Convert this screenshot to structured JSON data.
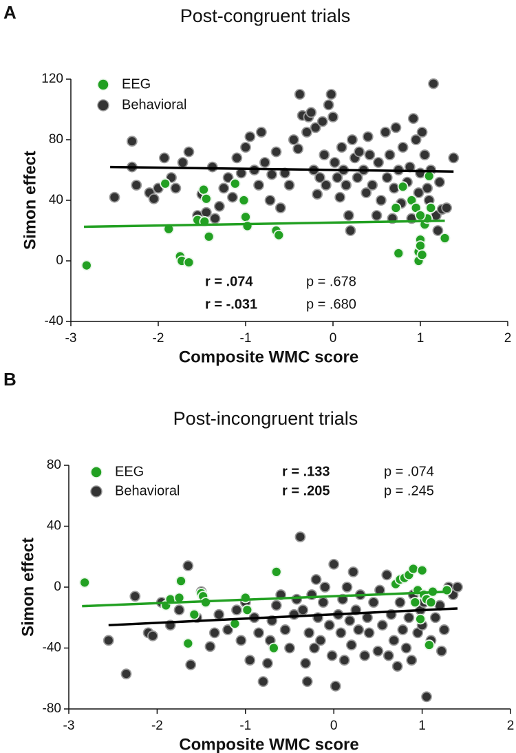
{
  "chart_data": [
    {
      "type": "scatter",
      "panel_label": "A",
      "title": "Post-congruent trials",
      "xlabel": "Composite WMC score",
      "ylabel": "Simon effect",
      "xlim": [
        -3,
        2
      ],
      "xticks": [
        -3,
        -2,
        -1,
        0,
        1,
        2
      ],
      "ylim": [
        -40,
        120
      ],
      "yticks": [
        -40,
        0,
        40,
        80,
        120
      ],
      "legend": "upper left",
      "series": [
        {
          "name": "Behavioral",
          "color": "#333333",
          "x": [
            -2.5,
            -2.3,
            -2.3,
            -2.25,
            -2.1,
            -2.05,
            -2.0,
            -1.93,
            -1.85,
            -1.8,
            -1.72,
            -1.65,
            -1.55,
            -1.5,
            -1.45,
            -1.38,
            -1.35,
            -1.3,
            -1.25,
            -1.2,
            -1.15,
            -1.1,
            -1.05,
            -1.0,
            -0.95,
            -0.9,
            -0.85,
            -0.82,
            -0.78,
            -0.72,
            -0.7,
            -0.65,
            -0.6,
            -0.55,
            -0.5,
            -0.45,
            -0.4,
            -0.38,
            -0.35,
            -0.3,
            -0.28,
            -0.25,
            -0.22,
            -0.2,
            -0.18,
            -0.15,
            -0.12,
            -0.1,
            -0.08,
            -0.05,
            -0.02,
            0.0,
            0.02,
            0.05,
            0.08,
            0.1,
            0.12,
            0.15,
            0.18,
            0.2,
            0.22,
            0.25,
            0.28,
            0.3,
            0.35,
            0.38,
            0.4,
            0.42,
            0.45,
            0.5,
            0.52,
            0.55,
            0.6,
            0.62,
            0.65,
            0.68,
            0.7,
            0.72,
            0.75,
            0.78,
            0.8,
            0.85,
            0.88,
            0.9,
            0.92,
            0.95,
            0.98,
            1.0,
            1.02,
            1.05,
            1.08,
            1.1,
            1.12,
            1.15,
            1.18,
            1.2,
            1.22,
            1.25,
            1.3,
            1.38
          ],
          "values": [
            42,
            79,
            62,
            50,
            45,
            41,
            48,
            68,
            55,
            48,
            65,
            72,
            30,
            44,
            32,
            62,
            28,
            36,
            48,
            55,
            42,
            68,
            58,
            75,
            82,
            60,
            50,
            85,
            65,
            40,
            57,
            72,
            35,
            58,
            50,
            80,
            74,
            110,
            96,
            85,
            95,
            98,
            60,
            88,
            44,
            55,
            92,
            70,
            50,
            103,
            110,
            95,
            65,
            55,
            42,
            75,
            60,
            50,
            30,
            20,
            80,
            68,
            55,
            72,
            60,
            45,
            82,
            70,
            50,
            30,
            65,
            40,
            85,
            55,
            70,
            28,
            48,
            88,
            60,
            38,
            75,
            52,
            62,
            28,
            94,
            80,
            45,
            58,
            85,
            70,
            48,
            40,
            60,
            117,
            30,
            20,
            52,
            34,
            35,
            68
          ],
          "fit": {
            "x": [
              -2.55,
              1.38
            ],
            "y": [
              62,
              59
            ]
          }
        },
        {
          "name": "EEG",
          "color": "#22a022",
          "x": [
            -2.82,
            -1.92,
            -1.88,
            -1.75,
            -1.73,
            -1.65,
            -1.55,
            -1.48,
            -1.47,
            -1.45,
            -1.42,
            -1.12,
            -1.02,
            -1.0,
            -0.98,
            -0.65,
            -0.62,
            0.72,
            0.75,
            0.8,
            0.9,
            0.95,
            0.98,
            0.98,
            1.0,
            1.0,
            1.02,
            1.05,
            1.08,
            1.1,
            1.12,
            1.28,
            1.0
          ],
          "values": [
            -3,
            51,
            21,
            3,
            0,
            -1,
            27,
            47,
            26,
            41,
            16,
            51,
            40,
            29,
            23,
            20,
            17,
            35,
            5,
            49,
            40,
            35,
            0,
            6,
            14,
            10,
            4,
            24,
            28,
            56,
            35,
            15,
            30
          ],
          "fit": {
            "x": [
              -2.85,
              1.28
            ],
            "y": [
              22.5,
              26.5
            ]
          }
        }
      ],
      "annotations": [
        {
          "text": "r =  .074",
          "color": "#22a022",
          "bold": true
        },
        {
          "text": "p = .678",
          "color": "#111111",
          "bold": false
        },
        {
          "text": "r = -.031",
          "color": "#111111",
          "bold": true
        },
        {
          "text": "p = .680",
          "color": "#111111",
          "bold": false
        }
      ]
    },
    {
      "type": "scatter",
      "panel_label": "B",
      "title": "Post-incongruent trials",
      "xlabel": "Composite WMC score",
      "ylabel": "Simon effect",
      "xlim": [
        -3,
        2
      ],
      "xticks": [
        -3,
        -2,
        -1,
        0,
        1,
        2
      ],
      "ylim": [
        -80,
        80
      ],
      "yticks": [
        -80,
        -40,
        0,
        40,
        80
      ],
      "legend": "upper left",
      "series": [
        {
          "name": "Behavioral",
          "color": "#333333",
          "x": [
            -2.55,
            -2.35,
            -2.25,
            -2.1,
            -2.05,
            -1.95,
            -1.85,
            -1.75,
            -1.65,
            -1.62,
            -1.55,
            -1.5,
            -1.4,
            -1.35,
            -1.3,
            -1.2,
            -1.1,
            -1.05,
            -1.0,
            -0.95,
            -0.9,
            -0.85,
            -0.8,
            -0.75,
            -0.72,
            -0.7,
            -0.65,
            -0.6,
            -0.55,
            -0.5,
            -0.45,
            -0.42,
            -0.38,
            -0.35,
            -0.32,
            -0.3,
            -0.28,
            -0.25,
            -0.22,
            -0.2,
            -0.18,
            -0.15,
            -0.12,
            -0.1,
            -0.05,
            -0.02,
            0.0,
            0.02,
            0.05,
            0.08,
            0.1,
            0.12,
            0.15,
            0.18,
            0.2,
            0.22,
            0.25,
            0.28,
            0.3,
            0.35,
            0.38,
            0.4,
            0.45,
            0.5,
            0.52,
            0.55,
            0.6,
            0.62,
            0.65,
            0.68,
            0.72,
            0.75,
            0.78,
            0.82,
            0.85,
            0.88,
            0.9,
            0.95,
            0.98,
            1.0,
            1.02,
            1.05,
            1.1,
            1.15,
            1.2,
            1.22,
            1.25,
            1.3,
            1.35,
            1.4
          ],
          "values": [
            -35,
            -57,
            -6,
            -30,
            -32,
            -10,
            -25,
            -15,
            14,
            -51,
            -20,
            -3,
            -39,
            -30,
            -18,
            -28,
            -15,
            -35,
            -10,
            -48,
            -20,
            -30,
            -62,
            -50,
            -35,
            -22,
            -12,
            -5,
            -28,
            -40,
            -18,
            -8,
            33,
            -15,
            -50,
            -62,
            -30,
            -5,
            -40,
            5,
            -20,
            -35,
            -10,
            0,
            -25,
            -45,
            15,
            -65,
            -18,
            -30,
            -8,
            -48,
            0,
            -22,
            -38,
            10,
            -15,
            -28,
            -5,
            -45,
            -20,
            -30,
            -10,
            -42,
            -2,
            -25,
            8,
            -45,
            -18,
            -35,
            -52,
            -10,
            -28,
            -40,
            -20,
            -48,
            -5,
            -30,
            -15,
            -25,
            -10,
            -72,
            -35,
            -20,
            -12,
            -42,
            -28,
            0,
            -5,
            0
          ],
          "fit": {
            "x": [
              -2.55,
              1.4
            ],
            "y": [
              -25,
              -14
            ]
          }
        },
        {
          "name": "EEG",
          "color": "#22a022",
          "x": [
            -2.82,
            -1.9,
            -1.85,
            -1.75,
            -1.73,
            -1.65,
            -1.58,
            -1.5,
            -1.48,
            -1.45,
            -1.12,
            -1.0,
            -0.98,
            -0.65,
            -0.68,
            0.7,
            0.75,
            0.8,
            0.85,
            0.9,
            0.92,
            0.95,
            0.98,
            1.0,
            1.02,
            1.05,
            1.08,
            1.1,
            1.12,
            1.28
          ],
          "values": [
            3,
            -12,
            -8,
            -7,
            4,
            -37,
            -18,
            -4,
            -6,
            -10,
            -24,
            -7,
            -15,
            10,
            -40,
            2,
            5,
            6,
            8,
            12,
            -10,
            -2,
            -21,
            11,
            -5,
            -8,
            -38,
            -10,
            -3,
            -2
          ],
          "fit": {
            "x": [
              -2.85,
              1.3
            ],
            "y": [
              -12.5,
              -3
            ]
          }
        }
      ],
      "annotations": [
        {
          "text": "r = .133",
          "color": "#22a022",
          "bold": true
        },
        {
          "text": "p = .074",
          "color": "#111111",
          "bold": false
        },
        {
          "text": "r = .205",
          "color": "#111111",
          "bold": true
        },
        {
          "text": "p = .245",
          "color": "#111111",
          "bold": false
        }
      ]
    }
  ]
}
